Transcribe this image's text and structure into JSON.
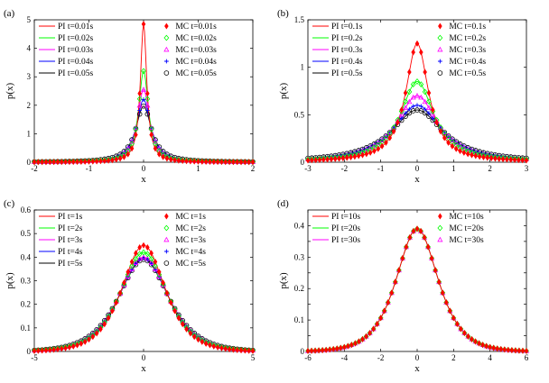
{
  "chart_data": [
    {
      "panel_label": "(a)",
      "type": "line",
      "xlabel": "x",
      "ylabel": "p(x)",
      "xlim": [
        -2,
        2
      ],
      "ylim": [
        0,
        5
      ],
      "xticks": [
        -2,
        -1,
        0,
        1,
        2
      ],
      "yticks": [
        0,
        1,
        2,
        3,
        4,
        5
      ],
      "grid": false,
      "legend": "two columns, top (PI left, MC right)",
      "peaks": [
        4.85,
        3.2,
        2.55,
        2.2,
        1.97
      ],
      "series": [
        {
          "pi_name": "PI t=0.01s",
          "mc_name": "MC t=0.01s",
          "color": "#ff0000",
          "marker": "diamond"
        },
        {
          "pi_name": "PI t=0.02s",
          "mc_name": "MC t=0.02s",
          "color": "#00ff00",
          "marker": "diamond-open"
        },
        {
          "pi_name": "PI t=0.03s",
          "mc_name": "MC t=0.03s",
          "color": "#ff00ff",
          "marker": "triangle-open"
        },
        {
          "pi_name": "PI t=0.04s",
          "mc_name": "MC t=0.04s",
          "color": "#0000ff",
          "marker": "plus"
        },
        {
          "pi_name": "PI t=0.05s",
          "mc_name": "MC t=0.05s",
          "color": "#000000",
          "marker": "circle-open"
        }
      ]
    },
    {
      "panel_label": "(b)",
      "type": "line",
      "xlabel": "x",
      "ylabel": "p(x)",
      "xlim": [
        -3,
        3
      ],
      "ylim": [
        0,
        1.5
      ],
      "xticks": [
        -3,
        -2,
        -1,
        0,
        1,
        2,
        3
      ],
      "yticks": [
        0,
        0.5,
        1,
        1.5
      ],
      "grid": false,
      "legend": "two columns, top (PI left, MC right)",
      "peaks": [
        1.25,
        0.85,
        0.7,
        0.6,
        0.55
      ],
      "series": [
        {
          "pi_name": "PI t=0.1s",
          "mc_name": "MC t=0.1s",
          "color": "#ff0000",
          "marker": "diamond"
        },
        {
          "pi_name": "PI t=0.2s",
          "mc_name": "MC t=0.2s",
          "color": "#00ff00",
          "marker": "diamond-open"
        },
        {
          "pi_name": "PI t=0.3s",
          "mc_name": "MC t=0.3s",
          "color": "#ff00ff",
          "marker": "triangle-open"
        },
        {
          "pi_name": "PI t=0.4s",
          "mc_name": "MC t=0.4s",
          "color": "#0000ff",
          "marker": "plus"
        },
        {
          "pi_name": "PI t=0.5s",
          "mc_name": "MC t=0.5s",
          "color": "#000000",
          "marker": "circle-open"
        }
      ]
    },
    {
      "panel_label": "(c)",
      "type": "line",
      "xlabel": "x",
      "ylabel": "p(x)",
      "xlim": [
        -5,
        5
      ],
      "ylim": [
        0,
        0.6
      ],
      "xticks": [
        -5,
        0,
        5
      ],
      "yticks": [
        0,
        0.1,
        0.2,
        0.3,
        0.4,
        0.5,
        0.6
      ],
      "grid": false,
      "legend": "two columns, top (PI left, MC right)",
      "peaks": [
        0.45,
        0.42,
        0.4,
        0.395,
        0.39
      ],
      "series": [
        {
          "pi_name": "PI t=1s",
          "mc_name": "MC t=1s",
          "color": "#ff0000",
          "marker": "diamond"
        },
        {
          "pi_name": "PI t=2s",
          "mc_name": "MC t=2s",
          "color": "#00ff00",
          "marker": "diamond-open"
        },
        {
          "pi_name": "PI t=3s",
          "mc_name": "MC t=3s",
          "color": "#ff00ff",
          "marker": "triangle-open"
        },
        {
          "pi_name": "PI t=4s",
          "mc_name": "MC t=4s",
          "color": "#0000ff",
          "marker": "plus"
        },
        {
          "pi_name": "PI t=5s",
          "mc_name": "MC t=5s",
          "color": "#000000",
          "marker": "circle-open"
        }
      ]
    },
    {
      "panel_label": "(d)",
      "type": "line",
      "xlabel": "x",
      "ylabel": "p(x)",
      "xlim": [
        -6,
        6
      ],
      "ylim": [
        0,
        0.45
      ],
      "xticks": [
        -6,
        -4,
        -2,
        0,
        2,
        4,
        6
      ],
      "yticks": [
        0,
        0.05,
        0.1,
        0.15,
        0.2,
        0.25,
        0.3,
        0.35,
        0.4
      ],
      "ytick_labels": [
        "0",
        "",
        "0.1",
        "",
        "0.2",
        "",
        "0.3",
        "",
        "0.4"
      ],
      "grid": false,
      "legend": "two columns, top (PI left, MC right)",
      "peaks": [
        0.39,
        0.39,
        0.39
      ],
      "series": [
        {
          "pi_name": "PI t=10s",
          "mc_name": "MC t=10s",
          "color": "#ff0000",
          "marker": "diamond"
        },
        {
          "pi_name": "PI t=20s",
          "mc_name": "MC t=20s",
          "color": "#00ff00",
          "marker": "diamond-open"
        },
        {
          "pi_name": "PI t=30s",
          "mc_name": "MC t=30s",
          "color": "#ff00ff",
          "marker": "triangle-open"
        }
      ]
    }
  ]
}
